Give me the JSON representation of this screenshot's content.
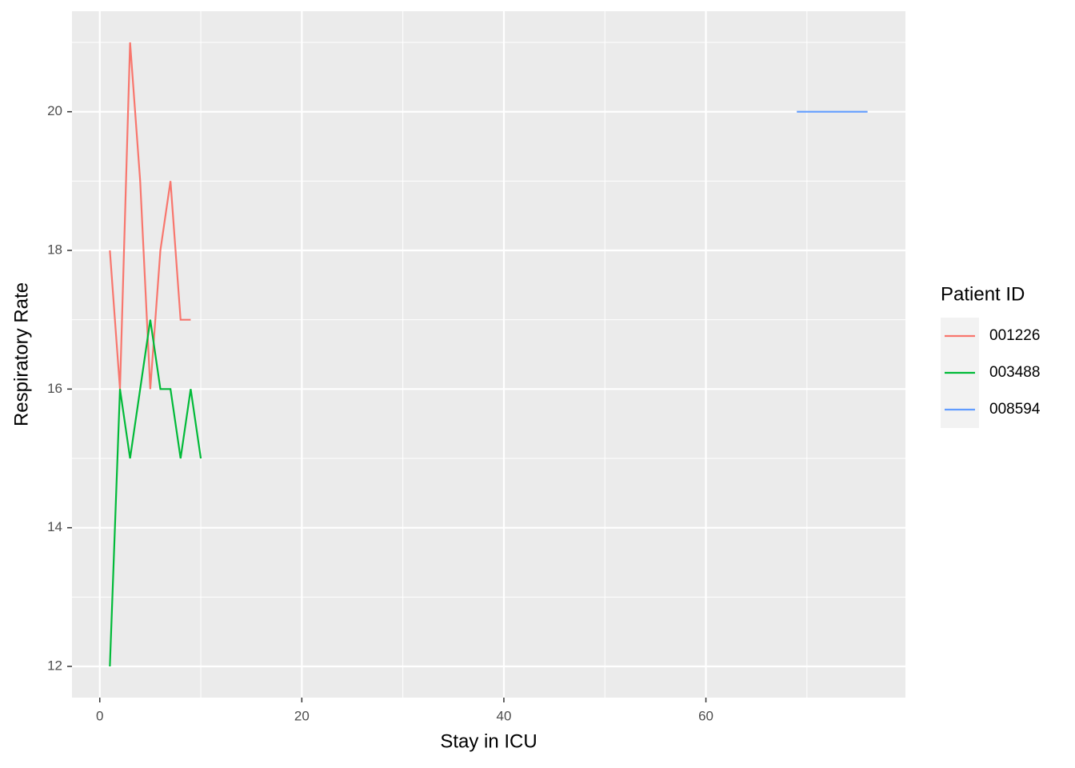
{
  "chart_data": {
    "type": "line",
    "xlabel": "Stay in ICU",
    "ylabel": "Respiratory Rate",
    "legend_title": "Patient ID",
    "legend_position": "right",
    "xlim": [
      -2.75,
      79.75
    ],
    "xticks": [
      0,
      20,
      40,
      60
    ],
    "x_minor_ticks": [
      10,
      30,
      50,
      70
    ],
    "ylim": [
      11.55,
      21.45
    ],
    "yticks": [
      12,
      14,
      16,
      18,
      20
    ],
    "y_minor_ticks": [
      13,
      15,
      17,
      19,
      21
    ],
    "grid": true,
    "series": [
      {
        "name": "001226",
        "color": "#f8766d",
        "x": [
          1,
          2,
          3,
          4,
          5,
          6,
          7,
          8,
          9
        ],
        "values": [
          18,
          16,
          21,
          19,
          16,
          18,
          19,
          17,
          17
        ]
      },
      {
        "name": "003488",
        "color": "#00ba38",
        "x": [
          1,
          2,
          3,
          4,
          5,
          6,
          7,
          8,
          9,
          10
        ],
        "values": [
          12,
          16,
          15,
          16,
          17,
          16,
          16,
          15,
          16,
          15
        ]
      },
      {
        "name": "008594",
        "color": "#619cff",
        "x": [
          69,
          76
        ],
        "values": [
          20,
          20
        ]
      }
    ]
  }
}
